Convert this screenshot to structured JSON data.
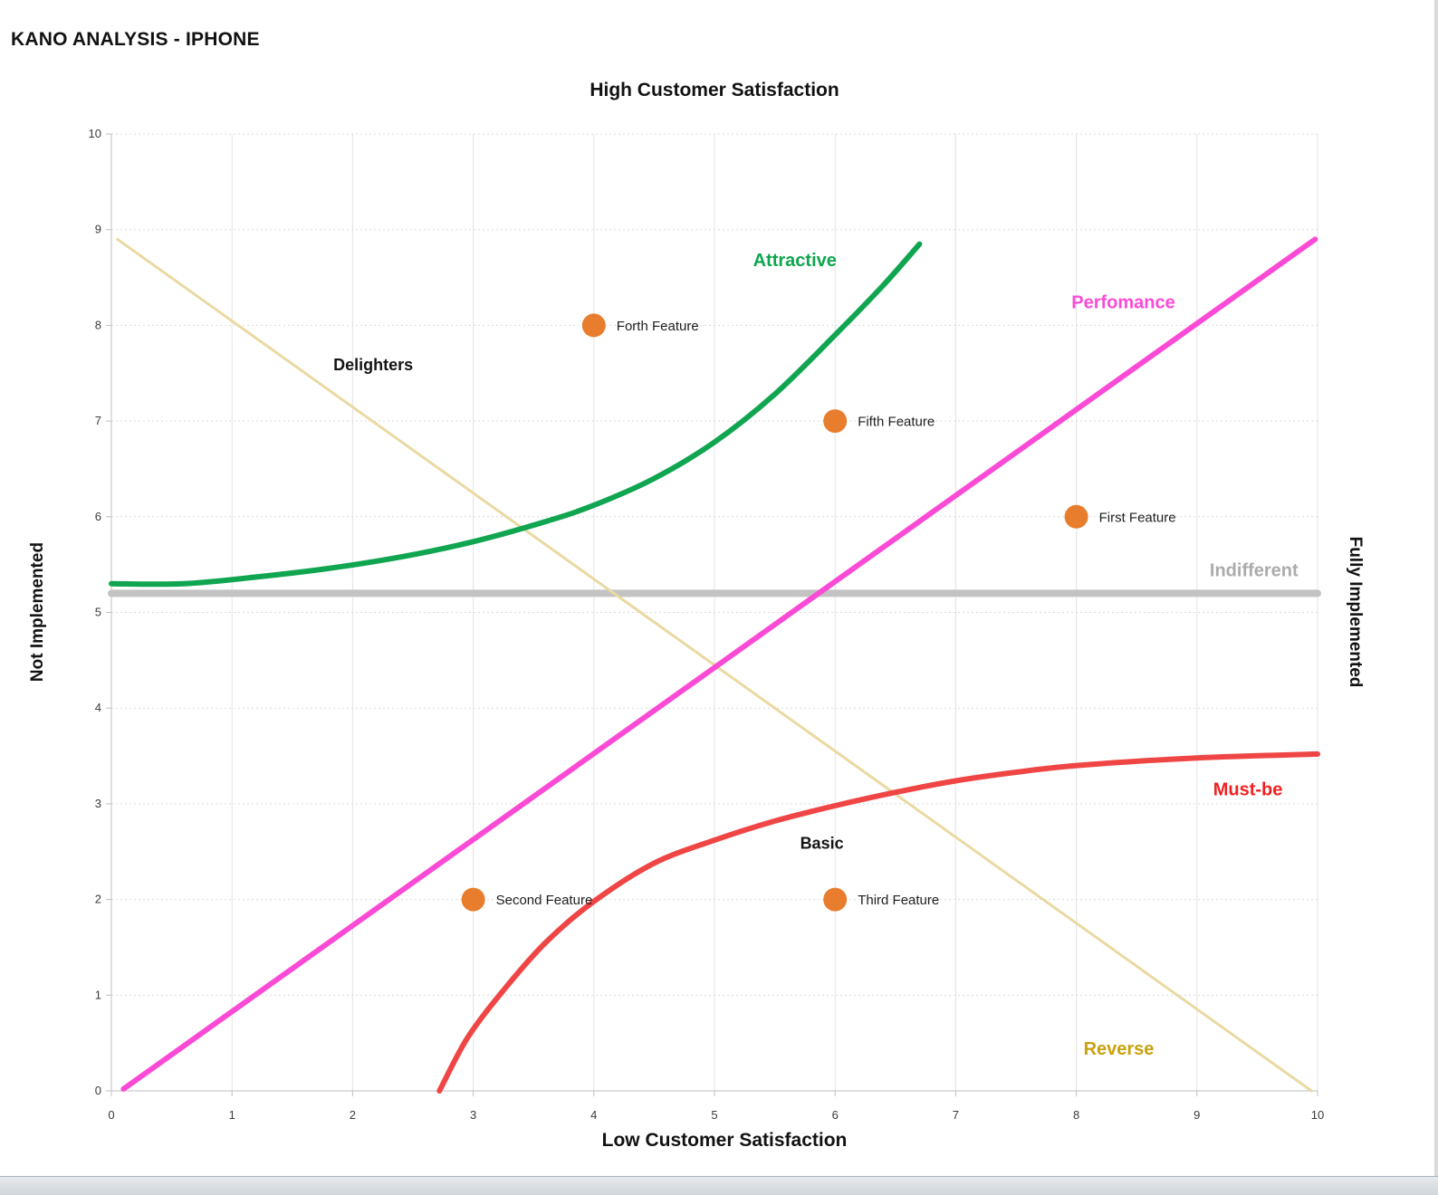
{
  "page": {
    "title": "KANO ANALYSIS - IPHONE"
  },
  "chart_data": {
    "type": "scatter",
    "title_top": "High Customer Satisfaction",
    "title_bottom": "Low Customer Satisfaction",
    "ylabel_left": "Not Implemented",
    "ylabel_right": "Fully Implemented",
    "xlim": [
      0,
      10
    ],
    "ylim": [
      0,
      10
    ],
    "x_ticks": [
      0,
      1,
      2,
      3,
      4,
      5,
      6,
      7,
      8,
      9,
      10
    ],
    "y_ticks": [
      0,
      1,
      2,
      3,
      4,
      5,
      6,
      7,
      8,
      9,
      10
    ],
    "grid": "on",
    "legend": "none",
    "series": [
      {
        "name": "Indifferent",
        "color": "#c3c3c3",
        "width": 8,
        "smooth": false,
        "points": [
          [
            0,
            5.2
          ],
          [
            10,
            5.2
          ]
        ]
      },
      {
        "name": "Reverse",
        "color": "#ead9a2",
        "width": 3,
        "smooth": false,
        "points": [
          [
            0.05,
            8.9
          ],
          [
            9.95,
            0
          ]
        ]
      },
      {
        "name": "Performance",
        "color": "#fb4ad5",
        "width": 6,
        "smooth": false,
        "points": [
          [
            0.1,
            0.02
          ],
          [
            9.98,
            8.9
          ]
        ]
      },
      {
        "name": "Must-be",
        "color": "#f04545",
        "width": 6,
        "smooth": true,
        "points": [
          [
            2.72,
            0
          ],
          [
            2.95,
            0.55
          ],
          [
            3.25,
            1.05
          ],
          [
            3.6,
            1.55
          ],
          [
            4,
            1.98
          ],
          [
            4.5,
            2.38
          ],
          [
            5,
            2.62
          ],
          [
            5.5,
            2.82
          ],
          [
            6,
            2.98
          ],
          [
            6.5,
            3.12
          ],
          [
            7,
            3.24
          ],
          [
            7.5,
            3.33
          ],
          [
            8,
            3.4
          ],
          [
            9,
            3.48
          ],
          [
            10,
            3.52
          ]
        ]
      },
      {
        "name": "Attractive",
        "color": "#10a550",
        "width": 6,
        "smooth": true,
        "points": [
          [
            0,
            5.3
          ],
          [
            0.6,
            5.3
          ],
          [
            1.2,
            5.37
          ],
          [
            1.8,
            5.46
          ],
          [
            2.4,
            5.58
          ],
          [
            3,
            5.74
          ],
          [
            3.6,
            5.95
          ],
          [
            4,
            6.12
          ],
          [
            4.5,
            6.4
          ],
          [
            5,
            6.78
          ],
          [
            5.5,
            7.28
          ],
          [
            6,
            7.9
          ],
          [
            6.4,
            8.42
          ],
          [
            6.7,
            8.85
          ]
        ]
      }
    ],
    "points": [
      {
        "label": "Forth Feature",
        "x": 4,
        "y": 8
      },
      {
        "label": "Fifth Feature",
        "x": 6,
        "y": 7
      },
      {
        "label": "First Feature",
        "x": 8,
        "y": 6
      },
      {
        "label": "Second Feature",
        "x": 3,
        "y": 2
      },
      {
        "label": "Third Feature",
        "x": 6,
        "y": 2
      }
    ],
    "point_color": "#e87d2d",
    "point_radius": 13,
    "point_label_size": 15,
    "point_label_color": "#1f1f1f",
    "annotations": [
      {
        "text": "Attractive",
        "x": 5.32,
        "y": 8.62,
        "color": "#10a550",
        "bold": true,
        "size": 20,
        "anchor": "start"
      },
      {
        "text": "Delighters",
        "x": 1.84,
        "y": 7.53,
        "color": "#141414",
        "bold": true,
        "size": 18,
        "anchor": "start"
      },
      {
        "text": "Perfomance",
        "x": 7.96,
        "y": 8.18,
        "color": "#fb4ad5",
        "bold": true,
        "size": 20,
        "anchor": "start"
      },
      {
        "text": "Indifferent",
        "x": 9.84,
        "y": 5.38,
        "color": "#ababab",
        "bold": true,
        "size": 20,
        "anchor": "end"
      },
      {
        "text": "Must-be",
        "x": 9.71,
        "y": 3.09,
        "color": "#f02020",
        "bold": true,
        "size": 20,
        "anchor": "end"
      },
      {
        "text": "Basic",
        "x": 5.71,
        "y": 2.53,
        "color": "#141414",
        "bold": true,
        "size": 18,
        "anchor": "start"
      },
      {
        "text": "Reverse",
        "x": 8.06,
        "y": 0.38,
        "color": "#c9a10e",
        "bold": true,
        "size": 20,
        "anchor": "start"
      }
    ],
    "axis_color": "#bfbfbf",
    "grid_v_color": "#e4e4e4",
    "grid_h_color": "#d9d9d9",
    "tick_label_color": "#3a3a3a",
    "tick_label_size": 13
  }
}
